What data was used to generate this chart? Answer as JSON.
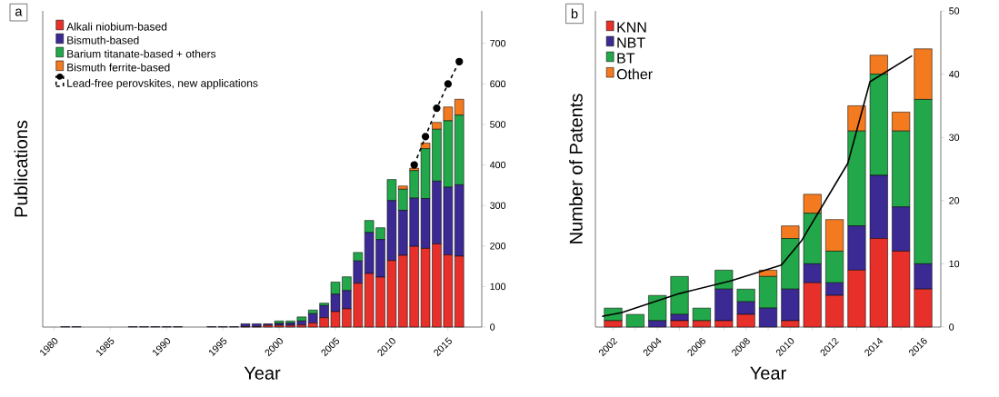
{
  "chart_data": [
    {
      "type": "bar",
      "title": "a",
      "xlabel": "Year",
      "ylabel": "Publications",
      "stacked": true,
      "legend": "top left",
      "x": [
        1981,
        1982,
        1987,
        1988,
        1989,
        1990,
        1991,
        1994,
        1995,
        1996,
        1997,
        1998,
        1999,
        2000,
        2001,
        2002,
        2003,
        2004,
        2005,
        2006,
        2007,
        2008,
        2009,
        2010,
        2011,
        2012,
        2013,
        2014,
        2015,
        2016
      ],
      "series": [
        {
          "name": "Alkali niobium-based",
          "color": "#e8302a",
          "values": [
            0,
            0,
            0,
            0,
            0,
            0,
            0,
            0,
            0,
            0,
            1,
            1,
            4,
            4,
            4,
            5,
            10,
            23,
            38,
            45,
            108,
            132,
            123,
            164,
            177,
            199,
            194,
            205,
            178,
            175
          ]
        },
        {
          "name": "Bismuth-based",
          "color": "#3b2a94",
          "values": [
            1,
            1,
            1,
            1,
            1,
            1,
            1,
            1,
            1,
            1,
            7,
            7,
            4,
            5,
            6,
            10,
            23,
            30,
            43,
            45,
            55,
            101,
            93,
            148,
            111,
            119,
            123,
            155,
            167,
            176
          ]
        },
        {
          "name": "Barium titanate-based + others",
          "color": "#22a84a",
          "values": [
            0,
            0,
            0,
            0,
            0,
            0,
            0,
            0,
            0,
            0,
            0,
            0,
            0,
            6,
            5,
            10,
            9,
            6,
            30,
            34,
            21,
            30,
            29,
            52,
            52,
            68,
            123,
            128,
            164,
            172
          ]
        },
        {
          "name": "Bismuth ferrite-based",
          "color": "#f47a20",
          "values": [
            0,
            0,
            0,
            0,
            0,
            0,
            0,
            0,
            0,
            0,
            0,
            0,
            0,
            0,
            0,
            0,
            0,
            0,
            0,
            0,
            0,
            0,
            0,
            0,
            8,
            6,
            14,
            17,
            34,
            39
          ]
        },
        {
          "name": "Lead-free perovskites, new applications",
          "type": "line",
          "color": "#000000",
          "marker": "circle",
          "line_style": "dashed",
          "x": [
            2012,
            2013,
            2014,
            2015,
            2016
          ],
          "values": [
            400,
            470,
            540,
            600,
            655
          ]
        }
      ],
      "xlim": [
        1979,
        2018
      ],
      "xticks": [
        1980,
        1985,
        1990,
        1995,
        2000,
        2005,
        2010,
        2015
      ],
      "ylim": [
        0,
        780
      ],
      "yticks": [
        0,
        100,
        200,
        300,
        400,
        500,
        600,
        700
      ]
    },
    {
      "type": "bar",
      "title": "b",
      "xlabel": "Year",
      "ylabel": "Number of Patents",
      "stacked": true,
      "legend": "top left",
      "x": [
        2002,
        2003,
        2004,
        2005,
        2006,
        2007,
        2008,
        2009,
        2010,
        2011,
        2012,
        2013,
        2014,
        2015,
        2016
      ],
      "series": [
        {
          "name": "KNN",
          "color": "#e8302a",
          "values": [
            1,
            0,
            0,
            1,
            1,
            1,
            2,
            0,
            1,
            7,
            5,
            9,
            14,
            12,
            6
          ]
        },
        {
          "name": "NBT",
          "color": "#3b2a94",
          "values": [
            0,
            0,
            1,
            1,
            0,
            5,
            2,
            3,
            5,
            3,
            2,
            7,
            10,
            7,
            4
          ]
        },
        {
          "name": "BT",
          "color": "#22a84a",
          "values": [
            2,
            2,
            4,
            6,
            2,
            3,
            2,
            5,
            8,
            8,
            5,
            15,
            16,
            12,
            26
          ]
        },
        {
          "name": "Other",
          "color": "#f47a20",
          "values": [
            0,
            0,
            0,
            0,
            0,
            0,
            0,
            1,
            2,
            3,
            5,
            4,
            3,
            3,
            8
          ]
        },
        {
          "type": "line",
          "color": "#000000",
          "marker": "none",
          "line_style": "solid",
          "x": [
            2001.5,
            2002.4,
            2005,
            2007.3,
            2009.6,
            2010.5,
            2012.6,
            2013.6,
            2015.5
          ],
          "values": [
            1.7,
            2.3,
            5.3,
            7.3,
            9.8,
            13.6,
            25.9,
            38.8,
            42.9
          ]
        }
      ],
      "xlim": [
        2001.2,
        2016.8
      ],
      "xticks": [
        2002,
        {
          "value": 2003,
          "label": null
        },
        2004,
        {
          "value": 2005,
          "label": null
        },
        2006,
        {
          "value": 2007,
          "label": null
        },
        2008,
        {
          "value": 2009,
          "label": null
        },
        2010,
        {
          "value": 2011,
          "label": null
        },
        2012,
        {
          "value": 2013,
          "label": null
        },
        2014,
        {
          "value": 2015,
          "label": null
        },
        2016
      ],
      "ylim": [
        0,
        50
      ],
      "yticks": [
        0,
        10,
        20,
        30,
        40,
        50
      ]
    }
  ]
}
